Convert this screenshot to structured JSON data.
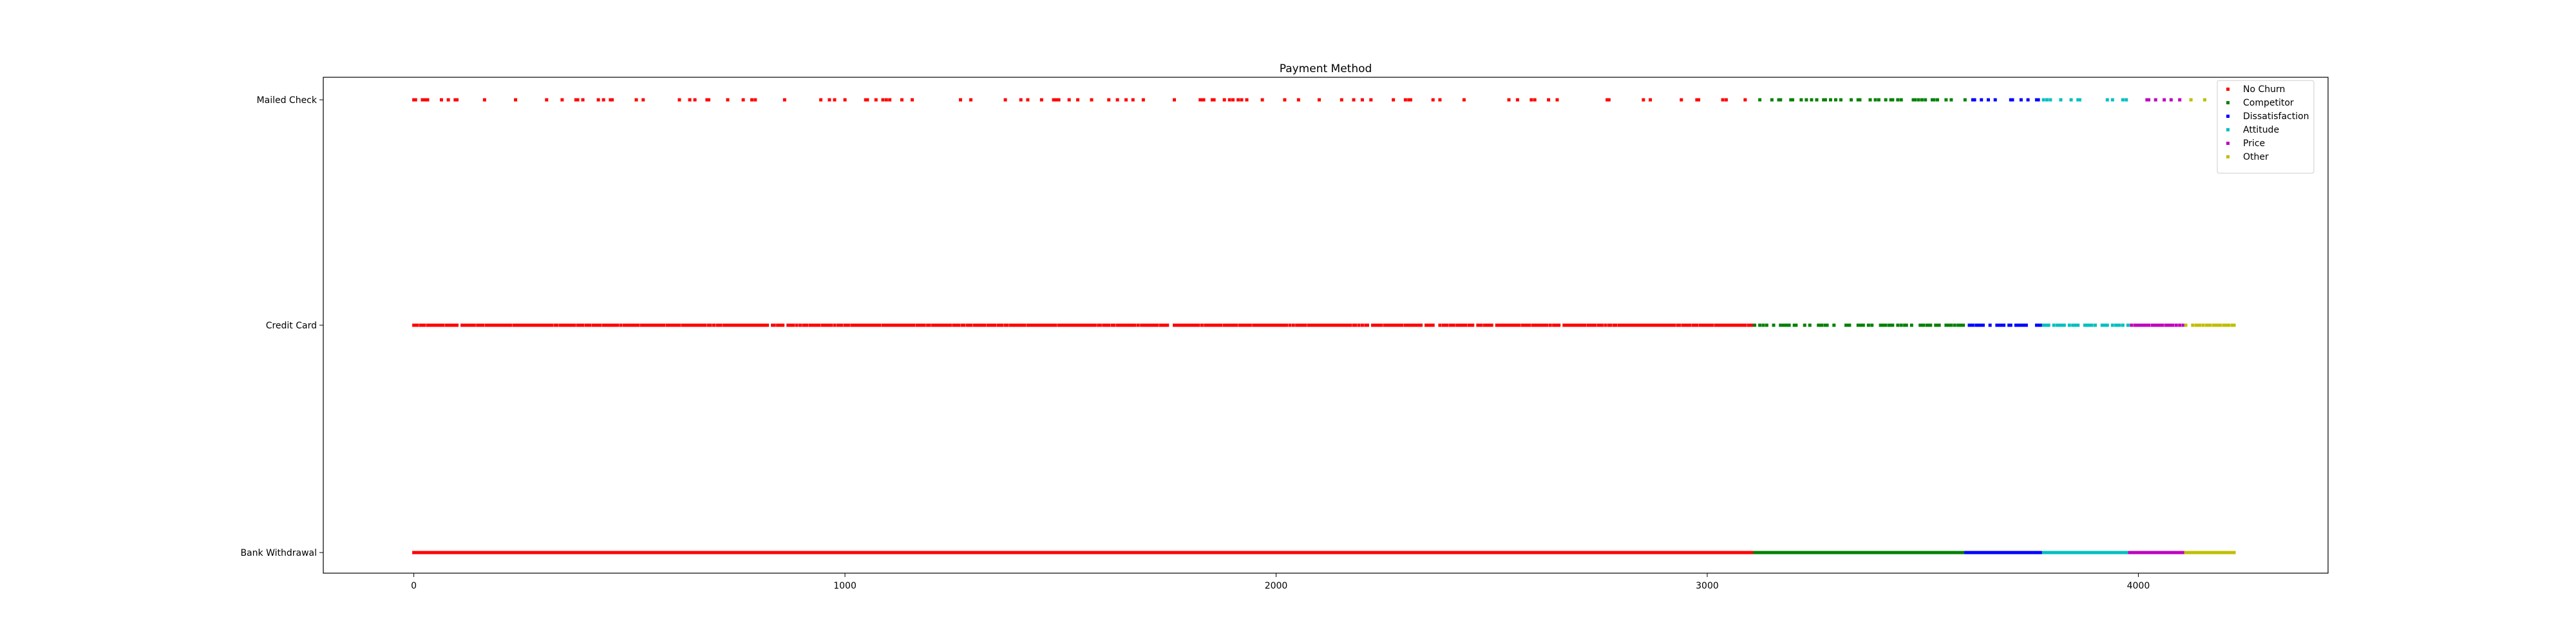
{
  "chart_data": {
    "type": "scatter",
    "title": "Payment Method",
    "xlabel": "",
    "ylabel": "",
    "xlim": [
      -210,
      4440
    ],
    "x_ticks": [
      0,
      1000,
      2000,
      3000,
      4000
    ],
    "x_tick_labels": [
      "0",
      "1000",
      "2000",
      "3000",
      "4000"
    ],
    "categories": [
      "Bank Withdrawal",
      "Credit Card",
      "Mailed Check"
    ],
    "grid": false,
    "legend_position": "top-right",
    "series": [
      {
        "name": "No Churn",
        "color": "#ff0000",
        "x_range": [
          0,
          3110
        ],
        "density": {
          "Bank Withdrawal": 1.0,
          "Credit Card": 0.85,
          "Mailed Check": 0.12
        }
      },
      {
        "name": "Competitor",
        "color": "#008000",
        "x_range": [
          3110,
          3600
        ],
        "density": {
          "Bank Withdrawal": 1.0,
          "Credit Card": 0.45,
          "Mailed Check": 0.3
        }
      },
      {
        "name": "Dissatisfaction",
        "color": "#0000ff",
        "x_range": [
          3600,
          3780
        ],
        "density": {
          "Bank Withdrawal": 1.0,
          "Credit Card": 0.6,
          "Mailed Check": 0.3
        }
      },
      {
        "name": "Attitude",
        "color": "#00bfbf",
        "x_range": [
          3780,
          3980
        ],
        "density": {
          "Bank Withdrawal": 1.0,
          "Credit Card": 0.6,
          "Mailed Check": 0.25
        }
      },
      {
        "name": "Price",
        "color": "#bf00bf",
        "x_range": [
          3980,
          4110
        ],
        "density": {
          "Bank Withdrawal": 1.0,
          "Credit Card": 0.65,
          "Mailed Check": 0.3
        }
      },
      {
        "name": "Other",
        "color": "#bfbf00",
        "x_range": [
          4110,
          4225
        ],
        "density": {
          "Bank Withdrawal": 1.0,
          "Credit Card": 0.55,
          "Mailed Check": 0.15
        }
      }
    ]
  }
}
